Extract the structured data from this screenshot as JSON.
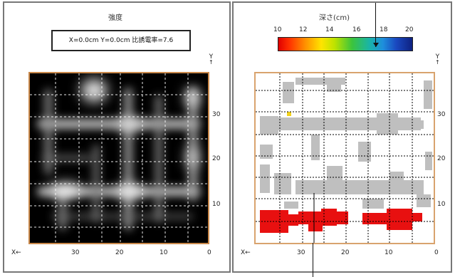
{
  "left_panel": {
    "title": "強度",
    "readout": "X=0.0cm Y=0.0cm 比誘電率=7.6",
    "y_axis_label": "Y",
    "x_axis_label": "X←",
    "y_ticks": [
      "30",
      "20",
      "10"
    ],
    "x_ticks": [
      "30",
      "20",
      "10",
      "0"
    ]
  },
  "right_panel": {
    "title": "深さ(cm)",
    "colorbar_ticks": [
      "10",
      "12",
      "14",
      "16",
      "18",
      "20"
    ],
    "y_axis_label": "Y",
    "x_axis_label": "X←",
    "y_ticks": [
      "30",
      "20",
      "10"
    ],
    "x_ticks": [
      "30",
      "20",
      "10",
      "0"
    ],
    "colors": {
      "grey": "#bfbfbf",
      "red": "#e81010",
      "yellow": "#f2d21b"
    }
  }
}
